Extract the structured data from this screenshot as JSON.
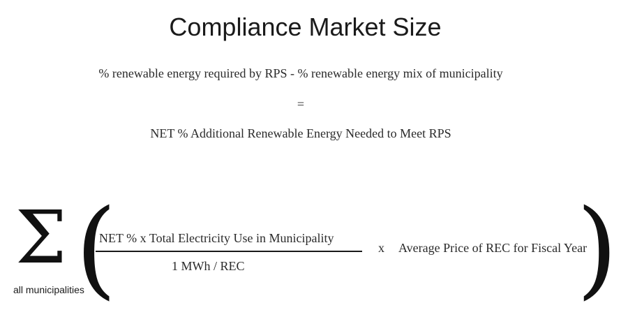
{
  "title": "Compliance Market Size",
  "equation": {
    "line1": "% renewable energy required by RPS - % renewable energy mix of municipality",
    "equals": "=",
    "line3": "NET % Additional Renewable Energy Needed to Meet RPS"
  },
  "formula": {
    "sigma": "Σ",
    "sigma_subscript": "all municipalities",
    "left_paren": "(",
    "numerator": "NET %  x  Total Electricity Use in Municipality",
    "denominator": "1 MWh / REC",
    "multiply": "x",
    "average_price": "Average Price of REC for Fiscal Year",
    "right_paren": ")"
  }
}
